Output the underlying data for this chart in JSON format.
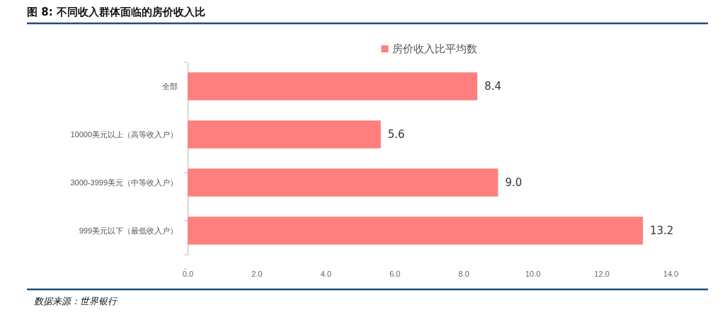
{
  "chart_data": {
    "type": "bar",
    "orientation": "horizontal",
    "title": "图 8: 不同收入群体面临的房价收入比",
    "categories": [
      "全部",
      "10000美元以上（高等收入户）",
      "3000-3999美元（中等收入户）",
      "999美元以下（最低收入户）"
    ],
    "series": [
      {
        "name": "房价收入比平均数",
        "color": "#ff7f7f",
        "values": [
          8.4,
          5.6,
          9.0,
          13.2
        ]
      }
    ],
    "value_labels": [
      "8.4",
      "5.6",
      "9.0",
      "13.2"
    ],
    "xlim": [
      0,
      14
    ],
    "xticks": [
      {
        "value": 0,
        "label": "0.0"
      },
      {
        "value": 2,
        "label": "2.0"
      },
      {
        "value": 4,
        "label": "4.0"
      },
      {
        "value": 6,
        "label": "6.0"
      },
      {
        "value": 8,
        "label": "8.0"
      },
      {
        "value": 10,
        "label": "10.0"
      },
      {
        "value": 12,
        "label": "12.0"
      },
      {
        "value": 14,
        "label": "14.0"
      }
    ],
    "grid": false,
    "legend": "top",
    "annotations": [
      "数据来源：世界银行"
    ]
  }
}
